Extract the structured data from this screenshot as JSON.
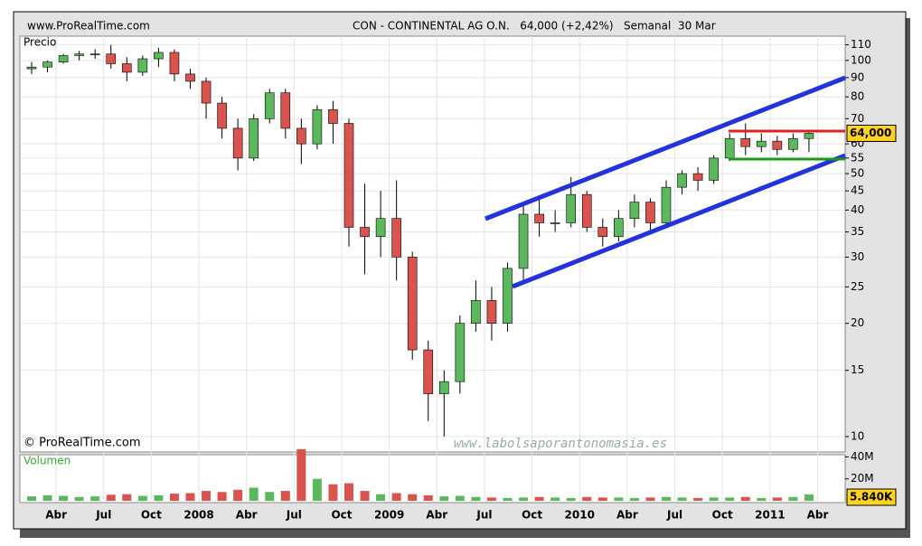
{
  "chart_data": {
    "type": "candlestick",
    "site": "www.ProRealTime.com",
    "title": "CON - CONTINENTAL AG O.N.   64,000 (+2,42%)   Semanal  30 Mar",
    "price_axis_label": "Precio",
    "copyright": "© ProRealTime.com",
    "watermark": "www.labolsaporantonomasia.es",
    "current_price_label": "64,000",
    "log_scale": true,
    "grid": true,
    "up_color": "#5cb85c",
    "down_color": "#d9534f",
    "categories": [
      null,
      null,
      "Abr",
      null,
      null,
      "Jul",
      null,
      null,
      "Oct",
      null,
      null,
      "2008",
      null,
      null,
      "Abr",
      null,
      null,
      "Jul",
      null,
      null,
      "Oct",
      null,
      null,
      "2009",
      null,
      null,
      "Abr",
      null,
      null,
      "Jul",
      null,
      null,
      "Oct",
      null,
      null,
      "2010",
      null,
      null,
      "Abr",
      null,
      null,
      "Jul",
      null,
      null,
      "Oct",
      null,
      null,
      "2011",
      null,
      null,
      "Abr"
    ],
    "open": [
      95,
      96,
      99,
      103,
      104,
      104,
      98,
      93,
      101,
      105,
      92,
      88,
      77,
      66,
      55,
      70,
      82,
      66,
      60,
      74,
      68,
      36,
      34,
      38,
      30,
      17,
      13,
      14,
      20,
      23,
      20,
      28,
      39,
      37,
      37,
      44,
      36,
      34,
      38,
      42,
      37,
      46,
      50,
      48,
      55,
      62,
      59,
      61,
      58,
      62,
      null
    ],
    "high": [
      99,
      100,
      104,
      106,
      107,
      110,
      102,
      103,
      108,
      107,
      95,
      90,
      80,
      70,
      72,
      84,
      84,
      70,
      76,
      78,
      70,
      47,
      45,
      48,
      31,
      18,
      15,
      21,
      26,
      25,
      29,
      42,
      43,
      40,
      49,
      45,
      38,
      40,
      44,
      43,
      48,
      51,
      52,
      56,
      64,
      68,
      64,
      63,
      64,
      65,
      null
    ],
    "low": [
      92,
      93,
      98,
      100,
      101,
      95,
      88,
      91,
      96,
      88,
      84,
      70,
      62,
      51,
      54,
      68,
      62,
      53,
      58,
      60,
      32,
      27,
      30,
      26,
      16,
      11,
      10,
      13,
      19,
      18,
      19,
      26,
      34,
      35,
      36,
      35,
      32,
      33,
      36,
      35,
      36,
      44,
      45,
      47,
      54,
      56,
      57,
      56,
      57,
      57,
      null
    ],
    "close": [
      96,
      99,
      103,
      104,
      104,
      98,
      93,
      101,
      105,
      92,
      88,
      77,
      66,
      55,
      70,
      82,
      66,
      60,
      74,
      68,
      36,
      34,
      38,
      30,
      17,
      13,
      14,
      20,
      23,
      20,
      28,
      39,
      37,
      37,
      44,
      36,
      34,
      38,
      42,
      37,
      46,
      50,
      48,
      55,
      62,
      59,
      61,
      58,
      62,
      64,
      null
    ],
    "ylim": [
      9.1,
      116
    ],
    "yticks": [
      10,
      15,
      20,
      25,
      30,
      35,
      40,
      45,
      50,
      55,
      60,
      70,
      80,
      90,
      100,
      110
    ],
    "volume": {
      "label": "Volumen",
      "values": [
        4000000,
        5000000,
        4500000,
        3500000,
        4000000,
        5500000,
        6000000,
        4500000,
        5000000,
        6500000,
        7000000,
        9000000,
        8000000,
        10000000,
        12000000,
        8000000,
        9000000,
        47000000,
        20000000,
        15000000,
        16000000,
        9000000,
        6000000,
        7000000,
        6000000,
        5000000,
        4000000,
        4500000,
        3500000,
        3000000,
        2500000,
        3000000,
        3500000,
        3000000,
        2500000,
        3500000,
        3000000,
        3000000,
        2500000,
        3000000,
        3500000,
        3000000,
        2500000,
        3000000,
        3000000,
        3500000,
        2500000,
        3000000,
        3500000,
        5840000,
        null
      ],
      "current_label": "5.840K",
      "ylim": [
        0,
        42000000
      ],
      "yticks": [
        {
          "value": 20000000,
          "label": "20M"
        },
        {
          "value": 40000000,
          "label": "40M"
        }
      ]
    }
  }
}
